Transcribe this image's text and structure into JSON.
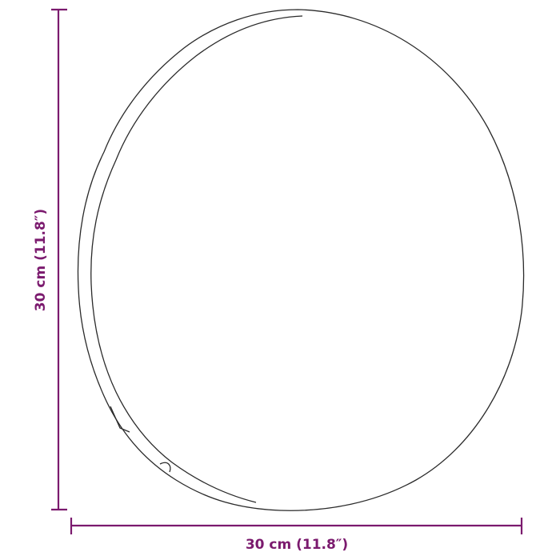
{
  "dimensions": {
    "height_label": "30 cm (11.8″)",
    "width_label": "30 cm (11.8″)"
  },
  "colors": {
    "dimension": "#7b1a6e",
    "outline": "#2a2a2a"
  }
}
